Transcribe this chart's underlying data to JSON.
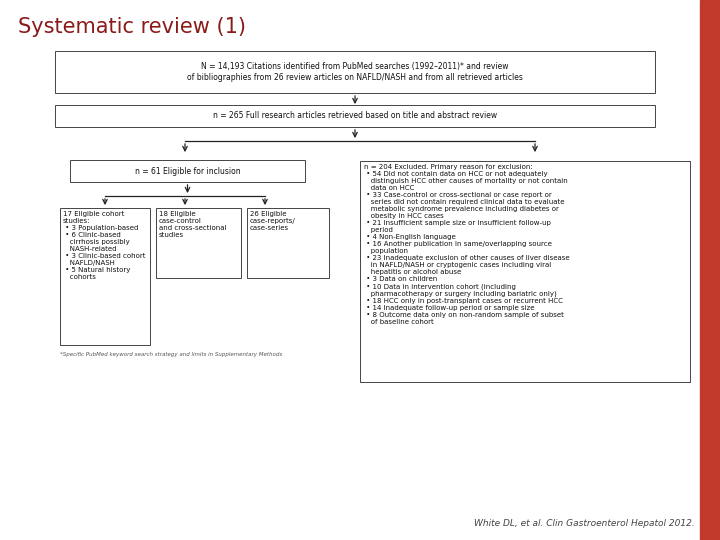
{
  "title": "Systematic review (1)",
  "title_color": "#8B1A1A",
  "title_fontsize": 15,
  "citation": "White DL, et al. Clin Gastroenterol Hepatol 2012.",
  "citation_color": "#444444",
  "bg_color": "#ffffff",
  "red_bar_color": "#C0392B",
  "footnote": "*Specific PubMed keyword search strategy and limits in Supplementary Methods",
  "box1_text": "N = 14,193 Citations identified from PubMed searches (1992–2011)* and review\nof bibliographies from 26 review articles on NAFLD/NASH and from all retrieved articles",
  "box2_text": "n = 265 Full research articles retrieved based on title and abstract review",
  "box3_text": "n = 61 Eligible for inclusion",
  "box4_text": "17 Eligible cohort\nstudies:\n • 3 Population-based\n • 6 Clinic-based\n   cirrhosis possibly\n   NASH-related\n • 3 Clinic-based cohort\n   NAFLD/NASH\n • 5 Natural history\n   cohorts",
  "box5_text": "18 Eligible\ncase-control\nand cross-sectional\nstudies",
  "box6_text": "26 Eligible\ncase-reports/\ncase-series",
  "box7_text": "n = 204 Excluded. Primary reason for exclusion:\n • 54 Did not contain data on HCC or not adequately\n   distinguish HCC other causes of mortality or not contain\n   data on HCC\n • 33 Case-control or cross-sectional or case report or\n   series did not contain required clinical data to evaluate\n   metabolic syndrome prevalence including diabetes or\n   obesity in HCC cases\n • 21 Insufficient sample size or insufficient follow-up\n   period\n • 4 Non-English language\n • 16 Another publication in same/overlapping source\n   population\n • 23 Inadequate exclusion of other causes of liver disease\n   in NAFLD/NASH or cryptogenic cases including viral\n   hepatitis or alcohol abuse\n • 3 Data on children\n • 10 Data in intervention cohort (including\n   pharmacotherapy or surgery including bariatric only)\n • 18 HCC only in post-transplant cases or recurrent HCC\n • 14 Inadequate follow-up period or sample size\n • 8 Outcome data only on non-random sample of subset\n   of baseline cohort"
}
